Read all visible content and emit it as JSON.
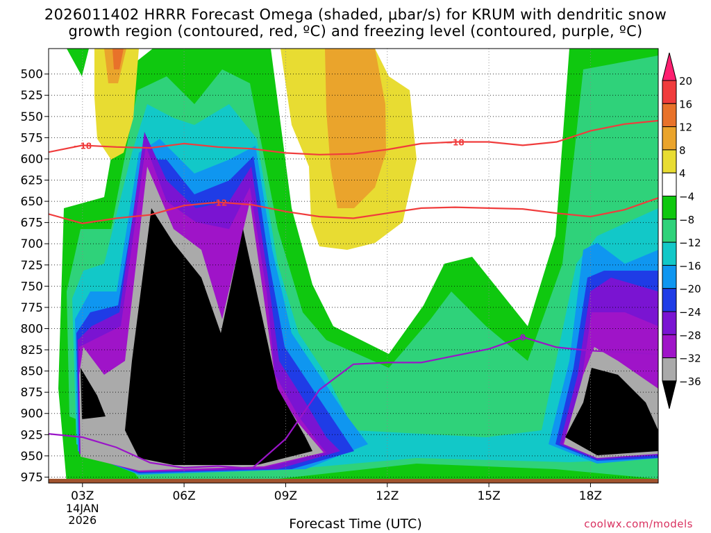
{
  "title": {
    "line1": "2026011402 HRRR Forecast Omega (shaded, μbar/s) for KRUM with dendritic snow",
    "line2": "growth region (contoured, red, ºC) and freezing level (contoured, purple, ºC)"
  },
  "x_axis_label": "Forecast Time (UTC)",
  "credit": "coolwx.com/models",
  "chart_data": {
    "type": "heatmap",
    "x_ticks": [
      {
        "hour": 3,
        "label": "03Z",
        "sub": [
          "14JAN",
          "2026"
        ]
      },
      {
        "hour": 6,
        "label": "06Z",
        "sub": []
      },
      {
        "hour": 9,
        "label": "09Z",
        "sub": []
      },
      {
        "hour": 12,
        "label": "12Z",
        "sub": []
      },
      {
        "hour": 15,
        "label": "15Z",
        "sub": []
      },
      {
        "hour": 18,
        "label": "18Z",
        "sub": []
      }
    ],
    "x_range_hours": [
      2,
      20
    ],
    "y_levels_hpa": [
      500,
      525,
      550,
      575,
      600,
      625,
      650,
      675,
      700,
      725,
      750,
      775,
      800,
      825,
      850,
      875,
      900,
      925,
      950,
      975
    ],
    "y_range_hpa": [
      470,
      982
    ],
    "colorbar": {
      "labels": [
        "20",
        "16",
        "12",
        "8",
        "4",
        "−4",
        "−8",
        "−12",
        "−16",
        "−20",
        "−24",
        "−28",
        "−32",
        "−36"
      ],
      "colors": [
        "#ff1f70",
        "#f03c3c",
        "#e8722a",
        "#eaa42c",
        "#e8dc32",
        "#ffffff",
        "#0fc80f",
        "#2fd27a",
        "#12c8c8",
        "#0f96f0",
        "#1f3ce6",
        "#7a14d2",
        "#9f14c8",
        "#aaaaaa",
        "#000000"
      ]
    },
    "dgz_contours": [
      {
        "label": "−18",
        "color": "#f03c3c",
        "points": [
          [
            2,
            592
          ],
          [
            3,
            584
          ],
          [
            4,
            586
          ],
          [
            5,
            587
          ],
          [
            6,
            582
          ],
          [
            7,
            586
          ],
          [
            8,
            588
          ],
          [
            9,
            593
          ],
          [
            10,
            595
          ],
          [
            11,
            594
          ],
          [
            12,
            589
          ],
          [
            13,
            582
          ],
          [
            14,
            580
          ],
          [
            15,
            580
          ],
          [
            16,
            584
          ],
          [
            17,
            580
          ],
          [
            18,
            567
          ],
          [
            19,
            559
          ],
          [
            20,
            555
          ]
        ]
      },
      {
        "label": "−12",
        "color": "#f03c3c",
        "points": [
          [
            2,
            665
          ],
          [
            3,
            676
          ],
          [
            4,
            670
          ],
          [
            5,
            666
          ],
          [
            6,
            655
          ],
          [
            7,
            651
          ],
          [
            8,
            654
          ],
          [
            9,
            662
          ],
          [
            10,
            668
          ],
          [
            11,
            670
          ],
          [
            12,
            664
          ],
          [
            13,
            658
          ],
          [
            14,
            657
          ],
          [
            15,
            658
          ],
          [
            16,
            659
          ],
          [
            17,
            664
          ],
          [
            18,
            668
          ],
          [
            19,
            660
          ],
          [
            20,
            646
          ]
        ]
      }
    ],
    "freezing_level": [
      {
        "label": "0",
        "color": "#9a14c8",
        "points": [
          [
            2,
            924
          ],
          [
            3,
            928
          ],
          [
            4,
            940
          ],
          [
            5,
            958
          ],
          [
            6,
            964
          ],
          [
            7,
            962
          ],
          [
            8,
            965
          ],
          [
            9,
            930
          ],
          [
            10,
            872
          ],
          [
            11,
            842
          ],
          [
            12,
            840
          ],
          [
            13,
            840
          ],
          [
            14,
            832
          ],
          [
            15,
            824
          ],
          [
            16,
            810
          ],
          [
            17,
            822
          ],
          [
            18,
            826
          ],
          [
            19,
            828
          ],
          [
            20,
            830
          ]
        ]
      }
    ],
    "terrain_top_hpa": 977
  }
}
